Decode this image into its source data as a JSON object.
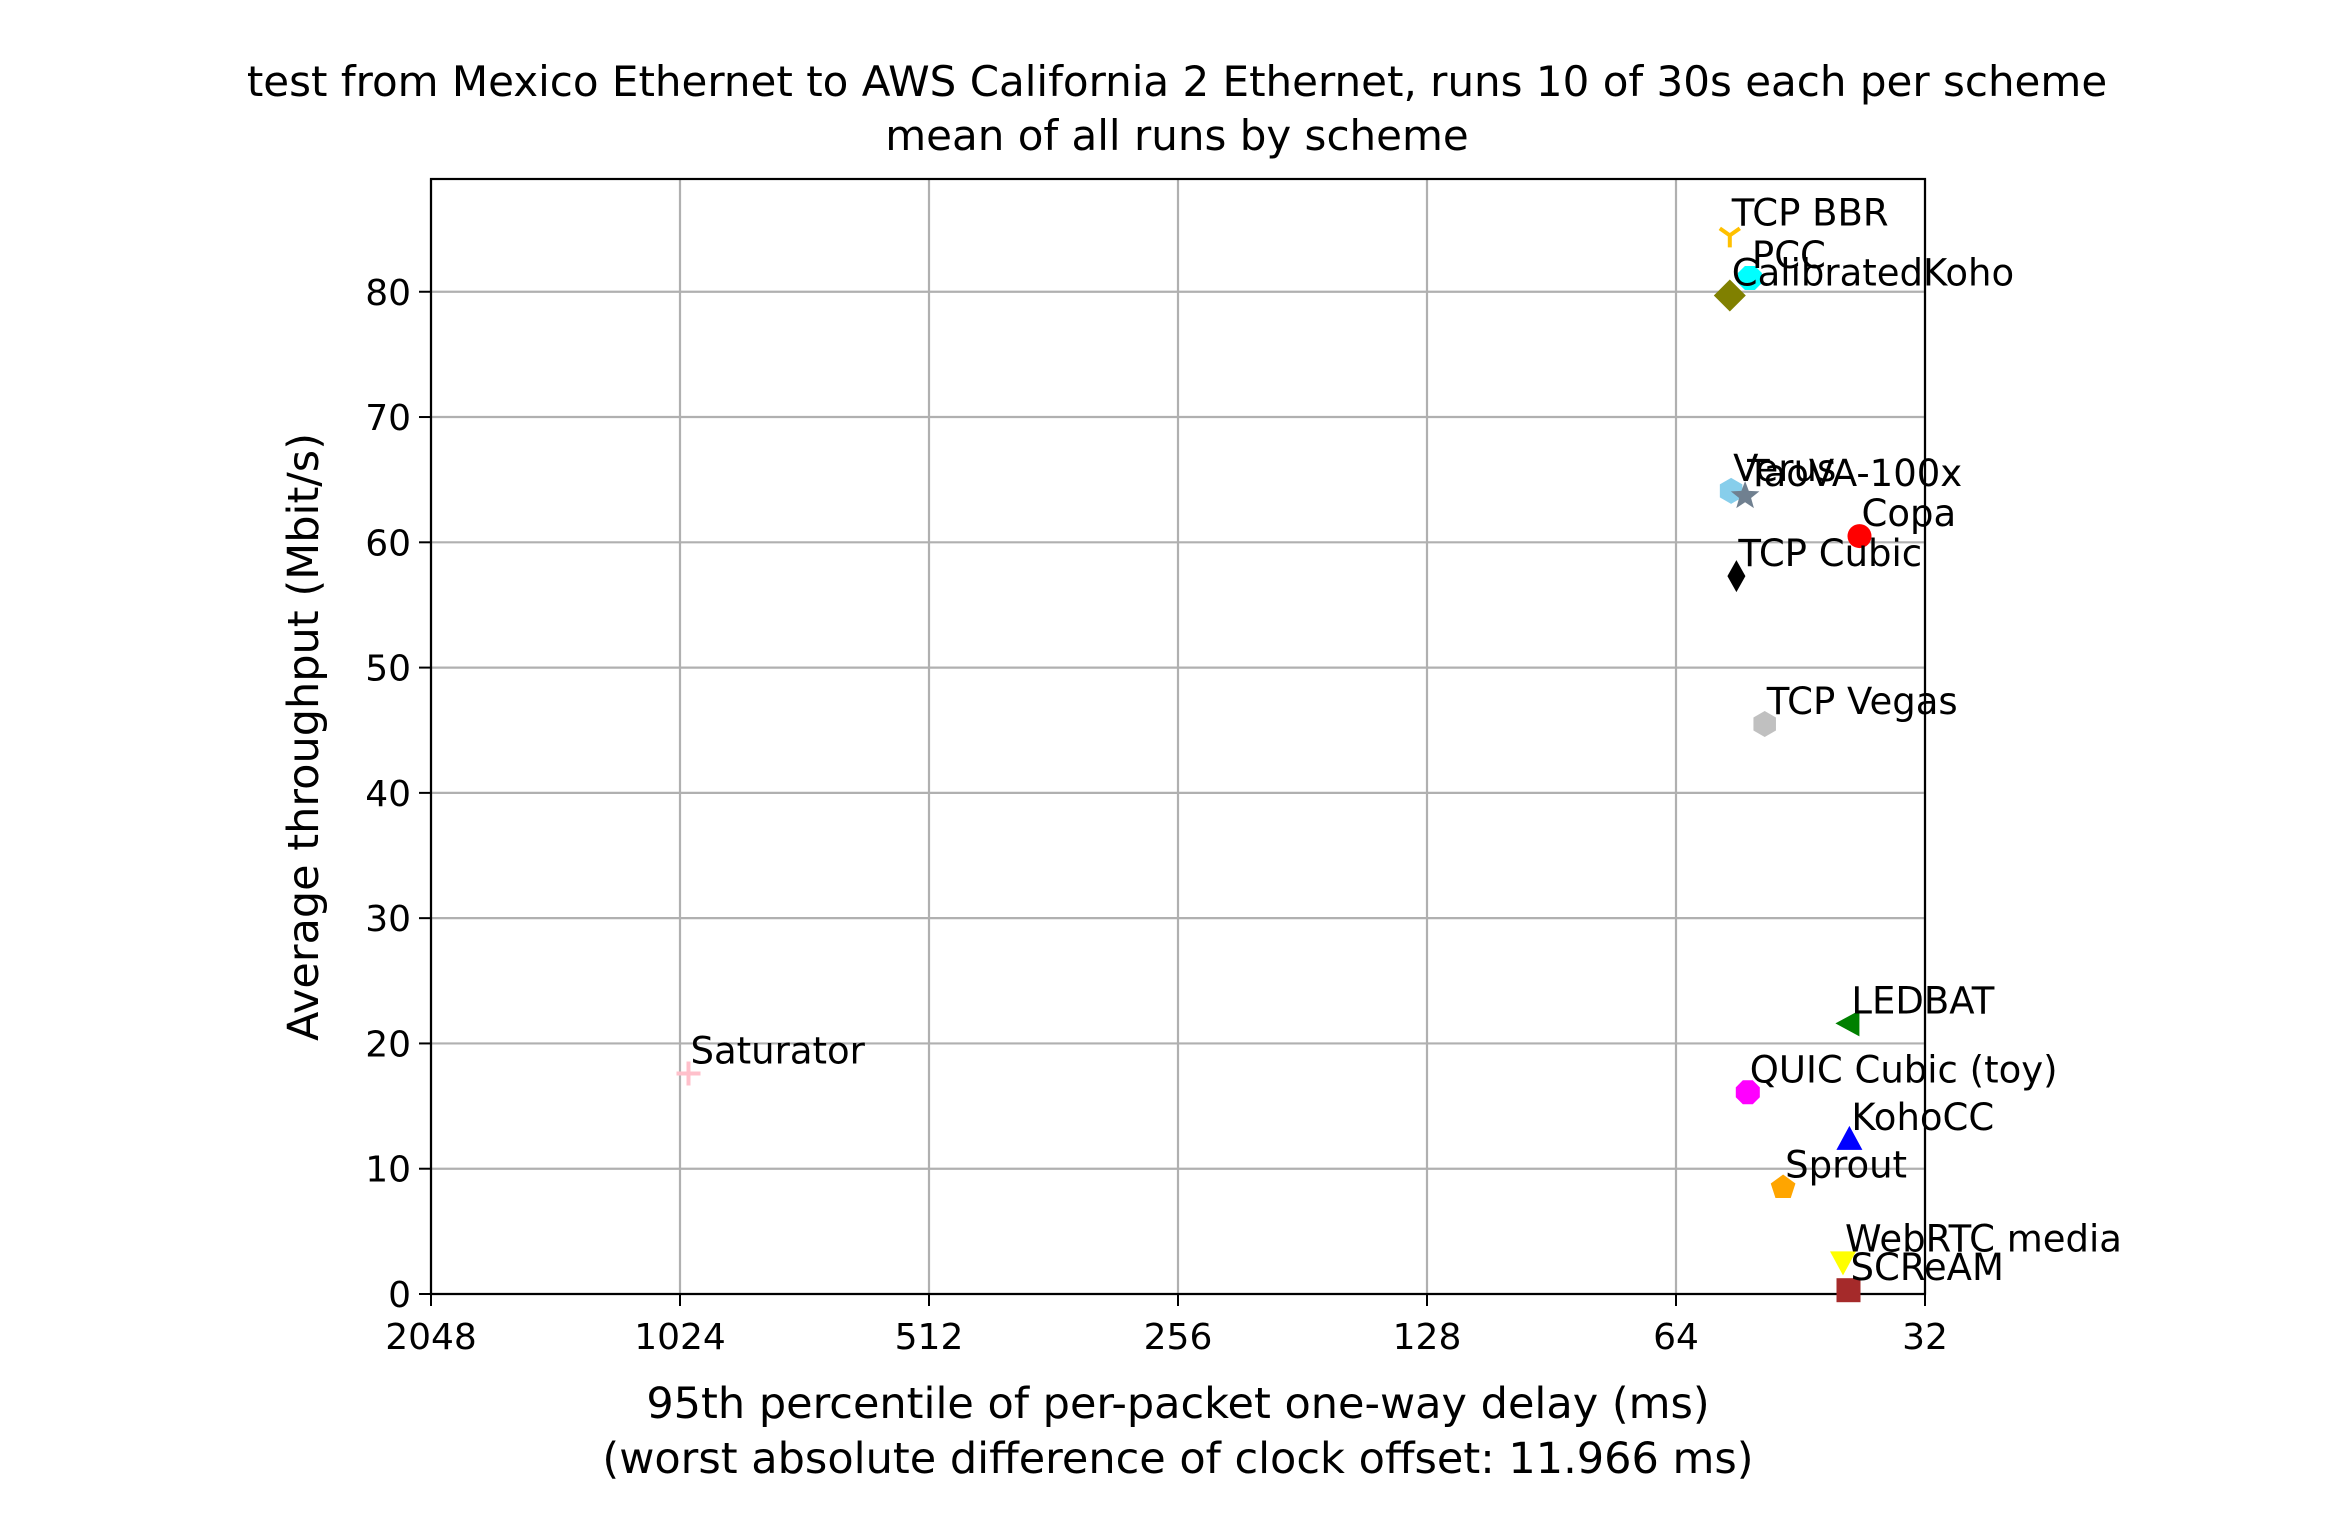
{
  "chart_data": {
    "type": "scatter",
    "title": "test from Mexico Ethernet to AWS California 2 Ethernet, runs 10 of 30s each per scheme",
    "subtitle": "mean of all runs by scheme",
    "xlabel": "95th percentile of per-packet one-way delay (ms)",
    "xlabel_note": "(worst absolute difference of clock offset: 11.966 ms)",
    "ylabel": "Average throughput (Mbit/s)",
    "x_scale": "log2",
    "x_inverted": true,
    "xlim": [
      2048,
      32
    ],
    "ylim": [
      0,
      89
    ],
    "grid": true,
    "x_ticks": [
      {
        "value": 2048,
        "label": "2048"
      },
      {
        "value": 1024,
        "label": "1024"
      },
      {
        "value": 512,
        "label": "512"
      },
      {
        "value": 256,
        "label": "256"
      },
      {
        "value": 128,
        "label": "128"
      },
      {
        "value": 64,
        "label": "64"
      },
      {
        "value": 32,
        "label": "32"
      }
    ],
    "y_ticks": [
      {
        "value": 0,
        "label": "0"
      },
      {
        "value": 10,
        "label": "10"
      },
      {
        "value": 20,
        "label": "20"
      },
      {
        "value": 30,
        "label": "30"
      },
      {
        "value": 40,
        "label": "40"
      },
      {
        "value": 50,
        "label": "50"
      },
      {
        "value": 60,
        "label": "60"
      },
      {
        "value": 70,
        "label": "70"
      },
      {
        "value": 80,
        "label": "80"
      }
    ],
    "points": [
      {
        "name": "TCP BBR",
        "x": 55.1,
        "y": 84.5,
        "marker": "tri_down",
        "color": "#ffc000"
      },
      {
        "name": "PCC",
        "x": 52.1,
        "y": 81.1,
        "marker": "octagon",
        "color": "#00ffff"
      },
      {
        "name": "CalibratedKoho",
        "x": 55.1,
        "y": 79.7,
        "marker": "diamond",
        "color": "#808000"
      },
      {
        "name": "Verus",
        "x": 54.9,
        "y": 64.1,
        "marker": "hexagon",
        "color": "#87ceeb"
      },
      {
        "name": "TaoVA-100x",
        "x": 52.8,
        "y": 63.7,
        "marker": "star",
        "color": "#708090"
      },
      {
        "name": "Copa",
        "x": 38.4,
        "y": 60.5,
        "marker": "circle",
        "color": "#ff0000"
      },
      {
        "name": "TCP Cubic",
        "x": 54.1,
        "y": 57.3,
        "marker": "thin_diamond",
        "color": "#000000"
      },
      {
        "name": "TCP Vegas",
        "x": 50.0,
        "y": 45.5,
        "marker": "hexagon",
        "color": "#c0c0c0"
      },
      {
        "name": "LEDBAT",
        "x": 39.5,
        "y": 21.6,
        "marker": "triangle_left",
        "color": "#008000"
      },
      {
        "name": "Saturator",
        "x": 1000.0,
        "y": 17.6,
        "marker": "plus",
        "color": "#ffc0cb"
      },
      {
        "name": "QUIC Cubic (toy)",
        "x": 52.4,
        "y": 16.1,
        "marker": "octagon",
        "color": "#ff00ff"
      },
      {
        "name": "KohoCC",
        "x": 39.5,
        "y": 12.3,
        "marker": "triangle_up",
        "color": "#0000ff"
      },
      {
        "name": "Sprout",
        "x": 47.5,
        "y": 8.5,
        "marker": "pentagon",
        "color": "#ffa500"
      },
      {
        "name": "WebRTC media",
        "x": 40.2,
        "y": 2.6,
        "marker": "triangle_down",
        "color": "#ffff00"
      },
      {
        "name": "SCReAM",
        "x": 39.6,
        "y": 0.3,
        "marker": "square",
        "color": "#a52a2a"
      }
    ]
  }
}
